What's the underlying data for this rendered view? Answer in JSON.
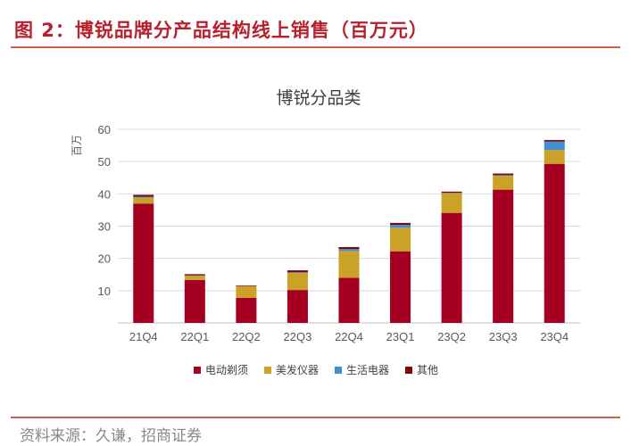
{
  "figure_title": "图 2：博锐品牌分产品结构线上销售（百万元）",
  "source_note": "资料来源：久谦，招商证券",
  "chart_data": {
    "type": "bar",
    "stacked": true,
    "title": "博锐分品类",
    "ylabel": "百万",
    "xlabel": "",
    "ylim": [
      0,
      60
    ],
    "yticks": [
      10,
      20,
      30,
      40,
      50,
      60
    ],
    "grid": true,
    "legend_position": "bottom",
    "categories": [
      "21Q4",
      "22Q1",
      "22Q2",
      "22Q3",
      "22Q4",
      "23Q1",
      "23Q2",
      "23Q3",
      "23Q4"
    ],
    "series": [
      {
        "name": "电动剃须",
        "color": "#A50021",
        "values": [
          37.0,
          13.3,
          7.8,
          10.2,
          14.0,
          22.2,
          34.1,
          41.3,
          49.3
        ]
      },
      {
        "name": "美发仪器",
        "color": "#C9A227",
        "values": [
          1.8,
          1.3,
          3.6,
          5.3,
          8.3,
          7.3,
          6.1,
          4.3,
          4.3
        ]
      },
      {
        "name": "生活电器",
        "color": "#3F8FD2",
        "values": [
          0.3,
          0.1,
          0.0,
          0.2,
          0.6,
          0.9,
          0.1,
          0.2,
          2.6
        ]
      },
      {
        "name": "其他",
        "color": "#7A0A0A",
        "values": [
          0.6,
          0.4,
          0.2,
          0.6,
          0.6,
          0.6,
          0.4,
          0.5,
          0.5
        ]
      }
    ]
  }
}
